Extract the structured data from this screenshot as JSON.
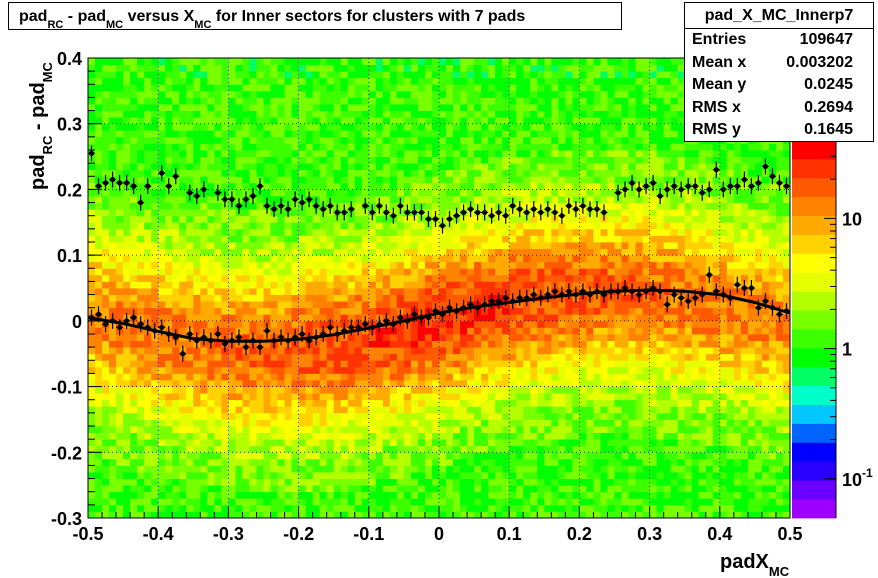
{
  "chart_data": {
    "type": "heatmap",
    "title": {
      "parts": [
        {
          "t": "pad",
          "sub": "RC"
        },
        {
          "t": " - pad",
          "sub": "MC"
        },
        {
          "t": " versus X",
          "sub": "MC"
        },
        {
          "t": " for Inner sectors for clusters with 7 pads",
          "sub": ""
        }
      ]
    },
    "xlabel": {
      "main": "padX",
      "sub": "MC"
    },
    "ylabel": {
      "p1": "pad",
      "s1": "RC",
      "p2": " - pad",
      "s2": "MC"
    },
    "xlim": [
      -0.5,
      0.5
    ],
    "ylim": [
      -0.3,
      0.4
    ],
    "x_ticks": [
      "-0.5",
      "-0.4",
      "-0.3",
      "-0.2",
      "-0.1",
      "0",
      "0.1",
      "0.2",
      "0.3",
      "0.4",
      "0.5"
    ],
    "y_ticks": [
      "-0.3",
      "-0.2",
      "-0.1",
      "0",
      "0.1",
      "0.2",
      "0.3",
      "0.4"
    ],
    "grid": true,
    "z_log": true,
    "z_range": [
      0.05,
      40
    ],
    "z_ticks": [
      {
        "value": 0.1,
        "base": "10",
        "exp": "-1"
      },
      {
        "value": 1,
        "base": "1",
        "exp": ""
      },
      {
        "value": 10,
        "base": "10",
        "exp": ""
      }
    ],
    "palette": [
      "#9e00ff",
      "#6a00ff",
      "#2a00ff",
      "#0000ff",
      "#0064ff",
      "#00c8ff",
      "#00ffc8",
      "#00ff64",
      "#00ff00",
      "#3cff00",
      "#78ff00",
      "#b4ff00",
      "#e6ff00",
      "#ffff00",
      "#ffd200",
      "#ffaa00",
      "#ff8200",
      "#ff5a00",
      "#ff3200",
      "#ff0000"
    ],
    "stats": {
      "name": "pad_X_MC_Innerp7",
      "rows": [
        {
          "label": "Entries",
          "value": "109647"
        },
        {
          "label": "Mean x",
          "value": "0.003202"
        },
        {
          "label": "Mean y",
          "value": "0.0245"
        },
        {
          "label": "RMS x",
          "value": "0.2694"
        },
        {
          "label": "RMS y",
          "value": "0.1645"
        }
      ]
    },
    "profile_points": [
      [
        -0.495,
        0.005
      ],
      [
        -0.485,
        0.01
      ],
      [
        -0.475,
        -0.005
      ],
      [
        -0.465,
        0.0
      ],
      [
        -0.455,
        -0.01
      ],
      [
        -0.445,
        0.0
      ],
      [
        -0.435,
        0.005
      ],
      [
        -0.425,
        -0.005
      ],
      [
        -0.415,
        -0.01
      ],
      [
        -0.405,
        -0.015
      ],
      [
        -0.395,
        -0.01
      ],
      [
        -0.385,
        -0.02
      ],
      [
        -0.375,
        -0.025
      ],
      [
        -0.365,
        -0.05
      ],
      [
        -0.355,
        -0.02
      ],
      [
        -0.345,
        -0.03
      ],
      [
        -0.335,
        -0.025
      ],
      [
        -0.325,
        -0.03
      ],
      [
        -0.315,
        -0.02
      ],
      [
        -0.305,
        -0.035
      ],
      [
        -0.295,
        -0.03
      ],
      [
        -0.285,
        -0.025
      ],
      [
        -0.275,
        -0.04
      ],
      [
        -0.265,
        -0.03
      ],
      [
        -0.255,
        -0.04
      ],
      [
        -0.245,
        -0.015
      ],
      [
        -0.235,
        -0.03
      ],
      [
        -0.225,
        -0.025
      ],
      [
        -0.215,
        -0.03
      ],
      [
        -0.205,
        -0.025
      ],
      [
        -0.195,
        -0.02
      ],
      [
        -0.185,
        -0.03
      ],
      [
        -0.175,
        -0.025
      ],
      [
        -0.165,
        -0.02
      ],
      [
        -0.155,
        -0.01
      ],
      [
        -0.145,
        -0.02
      ],
      [
        -0.135,
        -0.015
      ],
      [
        -0.125,
        -0.01
      ],
      [
        -0.115,
        -0.01
      ],
      [
        -0.105,
        -0.005
      ],
      [
        -0.095,
        -0.01
      ],
      [
        -0.085,
        -0.005
      ],
      [
        -0.075,
        0.0
      ],
      [
        -0.065,
        -0.005
      ],
      [
        -0.055,
        0.005
      ],
      [
        -0.045,
        0.0
      ],
      [
        -0.035,
        0.01
      ],
      [
        -0.025,
        0.005
      ],
      [
        -0.015,
        0.005
      ],
      [
        -0.005,
        0.015
      ],
      [
        0.005,
        0.01
      ],
      [
        0.015,
        0.02
      ],
      [
        0.025,
        0.015
      ],
      [
        0.035,
        0.02
      ],
      [
        0.045,
        0.025
      ],
      [
        0.055,
        0.02
      ],
      [
        0.065,
        0.025
      ],
      [
        0.075,
        0.03
      ],
      [
        0.085,
        0.03
      ],
      [
        0.095,
        0.035
      ],
      [
        0.105,
        0.03
      ],
      [
        0.115,
        0.035
      ],
      [
        0.125,
        0.035
      ],
      [
        0.135,
        0.04
      ],
      [
        0.145,
        0.035
      ],
      [
        0.155,
        0.04
      ],
      [
        0.165,
        0.045
      ],
      [
        0.175,
        0.04
      ],
      [
        0.185,
        0.045
      ],
      [
        0.195,
        0.04
      ],
      [
        0.205,
        0.045
      ],
      [
        0.215,
        0.04
      ],
      [
        0.225,
        0.045
      ],
      [
        0.235,
        0.04
      ],
      [
        0.245,
        0.045
      ],
      [
        0.255,
        0.045
      ],
      [
        0.265,
        0.05
      ],
      [
        0.275,
        0.045
      ],
      [
        0.285,
        0.04
      ],
      [
        0.295,
        0.045
      ],
      [
        0.305,
        0.05
      ],
      [
        0.315,
        0.045
      ],
      [
        0.325,
        0.025
      ],
      [
        0.335,
        0.04
      ],
      [
        0.345,
        0.035
      ],
      [
        0.355,
        0.03
      ],
      [
        0.365,
        0.035
      ],
      [
        0.375,
        0.04
      ],
      [
        0.385,
        0.07
      ],
      [
        0.395,
        0.045
      ],
      [
        0.405,
        0.04
      ],
      [
        0.415,
        0.035
      ],
      [
        0.425,
        0.055
      ],
      [
        0.435,
        0.05
      ],
      [
        0.445,
        0.05
      ],
      [
        0.455,
        0.02
      ],
      [
        0.465,
        0.03
      ],
      [
        0.475,
        0.02
      ],
      [
        0.485,
        0.01
      ],
      [
        0.495,
        0.015
      ]
    ],
    "upper_points": [
      [
        -0.495,
        0.255
      ],
      [
        -0.485,
        0.205
      ],
      [
        -0.475,
        0.21
      ],
      [
        -0.465,
        0.215
      ],
      [
        -0.455,
        0.21
      ],
      [
        -0.445,
        0.21
      ],
      [
        -0.435,
        0.205
      ],
      [
        -0.425,
        0.18
      ],
      [
        -0.415,
        0.205
      ],
      [
        -0.395,
        0.225
      ],
      [
        -0.385,
        0.205
      ],
      [
        -0.375,
        0.22
      ],
      [
        -0.355,
        0.195
      ],
      [
        -0.345,
        0.19
      ],
      [
        -0.335,
        0.2
      ],
      [
        -0.315,
        0.195
      ],
      [
        -0.305,
        0.185
      ],
      [
        -0.295,
        0.185
      ],
      [
        -0.285,
        0.175
      ],
      [
        -0.275,
        0.185
      ],
      [
        -0.265,
        0.19
      ],
      [
        -0.255,
        0.205
      ],
      [
        -0.245,
        0.175
      ],
      [
        -0.235,
        0.17
      ],
      [
        -0.225,
        0.175
      ],
      [
        -0.215,
        0.17
      ],
      [
        -0.205,
        0.185
      ],
      [
        -0.195,
        0.18
      ],
      [
        -0.185,
        0.185
      ],
      [
        -0.175,
        0.175
      ],
      [
        -0.165,
        0.17
      ],
      [
        -0.155,
        0.175
      ],
      [
        -0.145,
        0.165
      ],
      [
        -0.135,
        0.165
      ],
      [
        -0.125,
        0.17
      ],
      [
        -0.105,
        0.175
      ],
      [
        -0.095,
        0.165
      ],
      [
        -0.085,
        0.175
      ],
      [
        -0.075,
        0.165
      ],
      [
        -0.065,
        0.16
      ],
      [
        -0.055,
        0.175
      ],
      [
        -0.045,
        0.165
      ],
      [
        -0.035,
        0.165
      ],
      [
        -0.025,
        0.165
      ],
      [
        -0.015,
        0.155
      ],
      [
        -0.005,
        0.155
      ],
      [
        0.005,
        0.145
      ],
      [
        0.015,
        0.155
      ],
      [
        0.025,
        0.16
      ],
      [
        0.035,
        0.165
      ],
      [
        0.045,
        0.17
      ],
      [
        0.055,
        0.165
      ],
      [
        0.065,
        0.165
      ],
      [
        0.075,
        0.16
      ],
      [
        0.085,
        0.165
      ],
      [
        0.095,
        0.16
      ],
      [
        0.105,
        0.175
      ],
      [
        0.115,
        0.17
      ],
      [
        0.125,
        0.165
      ],
      [
        0.135,
        0.17
      ],
      [
        0.145,
        0.165
      ],
      [
        0.155,
        0.17
      ],
      [
        0.165,
        0.165
      ],
      [
        0.175,
        0.16
      ],
      [
        0.185,
        0.175
      ],
      [
        0.195,
        0.17
      ],
      [
        0.205,
        0.175
      ],
      [
        0.215,
        0.17
      ],
      [
        0.225,
        0.17
      ],
      [
        0.235,
        0.165
      ],
      [
        0.255,
        0.195
      ],
      [
        0.265,
        0.2
      ],
      [
        0.275,
        0.21
      ],
      [
        0.285,
        0.2
      ],
      [
        0.295,
        0.205
      ],
      [
        0.305,
        0.21
      ],
      [
        0.315,
        0.19
      ],
      [
        0.325,
        0.2
      ],
      [
        0.335,
        0.205
      ],
      [
        0.345,
        0.2
      ],
      [
        0.355,
        0.205
      ],
      [
        0.365,
        0.205
      ],
      [
        0.375,
        0.195
      ],
      [
        0.385,
        0.2
      ],
      [
        0.395,
        0.23
      ],
      [
        0.405,
        0.2
      ],
      [
        0.415,
        0.205
      ],
      [
        0.425,
        0.205
      ],
      [
        0.435,
        0.215
      ],
      [
        0.445,
        0.205
      ],
      [
        0.455,
        0.21
      ],
      [
        0.465,
        0.235
      ],
      [
        0.475,
        0.22
      ],
      [
        0.485,
        0.21
      ],
      [
        0.495,
        0.205
      ]
    ],
    "fit_curve": [
      [
        -0.5,
        0.005
      ],
      [
        -0.45,
        -0.004
      ],
      [
        -0.4,
        -0.016
      ],
      [
        -0.35,
        -0.027
      ],
      [
        -0.3,
        -0.031
      ],
      [
        -0.25,
        -0.031
      ],
      [
        -0.2,
        -0.028
      ],
      [
        -0.15,
        -0.021
      ],
      [
        -0.1,
        -0.011
      ],
      [
        -0.05,
        0.0
      ],
      [
        0.0,
        0.012
      ],
      [
        0.05,
        0.021
      ],
      [
        0.1,
        0.028
      ],
      [
        0.15,
        0.035
      ],
      [
        0.2,
        0.041
      ],
      [
        0.25,
        0.045
      ],
      [
        0.3,
        0.047
      ],
      [
        0.35,
        0.045
      ],
      [
        0.4,
        0.04
      ],
      [
        0.45,
        0.028
      ],
      [
        0.5,
        0.012
      ]
    ]
  }
}
